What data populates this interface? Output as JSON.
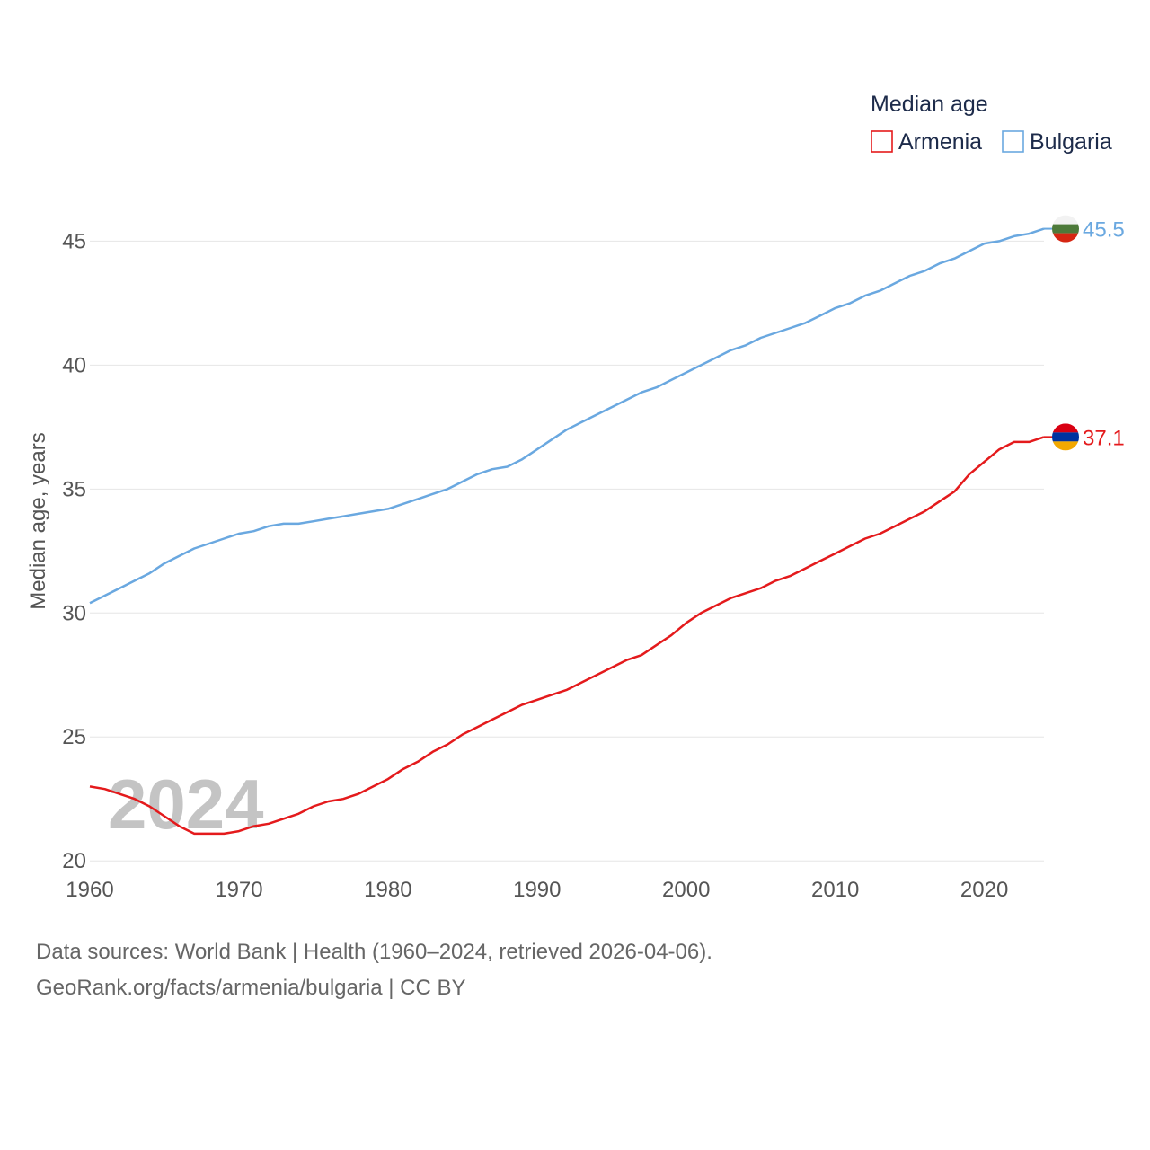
{
  "chart_data": {
    "type": "line",
    "title": "Median age",
    "ylabel": "Median age, years",
    "xlabel": "",
    "xlim": [
      1960,
      2024
    ],
    "ylim": [
      19.5,
      46.5
    ],
    "x_ticks": [
      1960,
      1970,
      1980,
      1990,
      2000,
      2010,
      2020
    ],
    "y_ticks": [
      20,
      25,
      30,
      35,
      40,
      45
    ],
    "year_label": "2024",
    "legend": {
      "title": "Median age",
      "position": "top-right"
    },
    "series": [
      {
        "name": "Armenia",
        "color": "#e41a1c",
        "end_label": "37.1",
        "flag": "armenia-flag-icon",
        "x": [
          1960,
          1961,
          1962,
          1963,
          1964,
          1965,
          1966,
          1967,
          1968,
          1969,
          1970,
          1971,
          1972,
          1973,
          1974,
          1975,
          1976,
          1977,
          1978,
          1979,
          1980,
          1981,
          1982,
          1983,
          1984,
          1985,
          1986,
          1987,
          1988,
          1989,
          1990,
          1991,
          1992,
          1993,
          1994,
          1995,
          1996,
          1997,
          1998,
          1999,
          2000,
          2001,
          2002,
          2003,
          2004,
          2005,
          2006,
          2007,
          2008,
          2009,
          2010,
          2011,
          2012,
          2013,
          2014,
          2015,
          2016,
          2017,
          2018,
          2019,
          2020,
          2021,
          2022,
          2023,
          2024
        ],
        "values": [
          23.0,
          22.9,
          22.7,
          22.5,
          22.2,
          21.8,
          21.4,
          21.1,
          21.1,
          21.1,
          21.2,
          21.4,
          21.5,
          21.7,
          21.9,
          22.2,
          22.4,
          22.5,
          22.7,
          23.0,
          23.3,
          23.7,
          24.0,
          24.4,
          24.7,
          25.1,
          25.4,
          25.7,
          26.0,
          26.3,
          26.5,
          26.7,
          26.9,
          27.2,
          27.5,
          27.8,
          28.1,
          28.3,
          28.7,
          29.1,
          29.6,
          30.0,
          30.3,
          30.6,
          30.8,
          31.0,
          31.3,
          31.5,
          31.8,
          32.1,
          32.4,
          32.7,
          33.0,
          33.2,
          33.5,
          33.8,
          34.1,
          34.5,
          34.9,
          35.6,
          36.1,
          36.6,
          36.9,
          36.9,
          37.1
        ]
      },
      {
        "name": "Bulgaria",
        "color": "#6aa8e0",
        "end_label": "45.5",
        "flag": "bulgaria-flag-icon",
        "x": [
          1960,
          1961,
          1962,
          1963,
          1964,
          1965,
          1966,
          1967,
          1968,
          1969,
          1970,
          1971,
          1972,
          1973,
          1974,
          1975,
          1976,
          1977,
          1978,
          1979,
          1980,
          1981,
          1982,
          1983,
          1984,
          1985,
          1986,
          1987,
          1988,
          1989,
          1990,
          1991,
          1992,
          1993,
          1994,
          1995,
          1996,
          1997,
          1998,
          1999,
          2000,
          2001,
          2002,
          2003,
          2004,
          2005,
          2006,
          2007,
          2008,
          2009,
          2010,
          2011,
          2012,
          2013,
          2014,
          2015,
          2016,
          2017,
          2018,
          2019,
          2020,
          2021,
          2022,
          2023,
          2024
        ],
        "values": [
          30.4,
          30.7,
          31.0,
          31.3,
          31.6,
          32.0,
          32.3,
          32.6,
          32.8,
          33.0,
          33.2,
          33.3,
          33.5,
          33.6,
          33.6,
          33.7,
          33.8,
          33.9,
          34.0,
          34.1,
          34.2,
          34.4,
          34.6,
          34.8,
          35.0,
          35.3,
          35.6,
          35.8,
          35.9,
          36.2,
          36.6,
          37.0,
          37.4,
          37.7,
          38.0,
          38.3,
          38.6,
          38.9,
          39.1,
          39.4,
          39.7,
          40.0,
          40.3,
          40.6,
          40.8,
          41.1,
          41.3,
          41.5,
          41.7,
          42.0,
          42.3,
          42.5,
          42.8,
          43.0,
          43.3,
          43.6,
          43.8,
          44.1,
          44.3,
          44.6,
          44.9,
          45.0,
          45.2,
          45.3,
          45.5
        ]
      }
    ]
  },
  "footer": {
    "line1": "Data sources: World Bank | Health (1960–2024, retrieved 2026-04-06).",
    "line2": "GeoRank.org/facts/armenia/bulgaria | CC BY"
  }
}
